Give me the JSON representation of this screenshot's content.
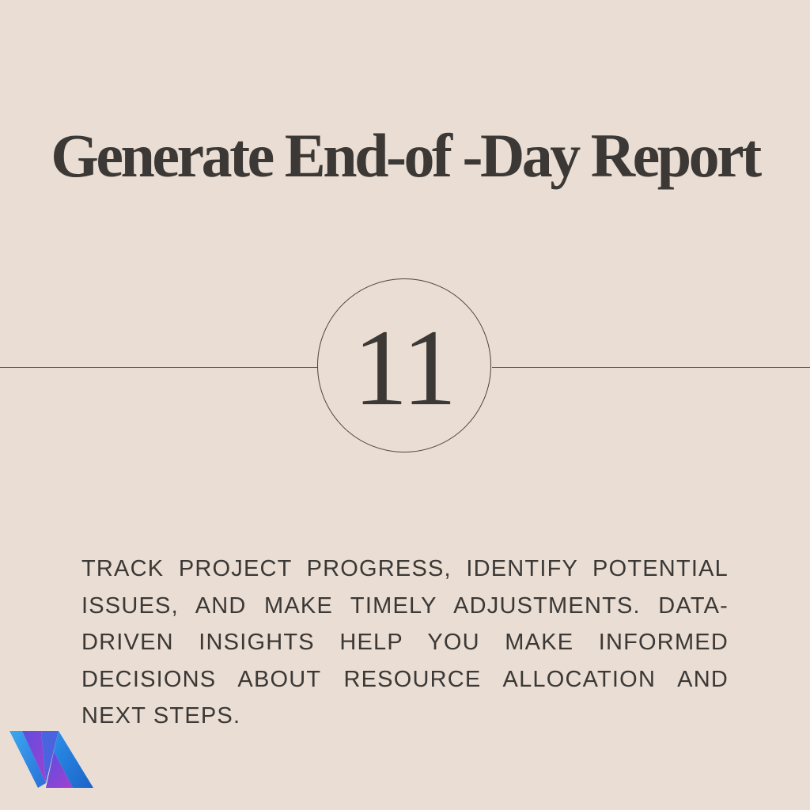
{
  "title": "Generate End-of -Day Report",
  "step_number": "11",
  "description": " TRACK PROJECT PROGRESS, IDENTIFY POTENTIAL ISSUES, AND MAKE TIMELY ADJUSTMENTS. DATA-DRIVEN INSIGHTS HELP YOU MAKE INFORMED DECISIONS ABOUT RESOURCE ALLOCATION AND NEXT STEPS.",
  "colors": {
    "background": "#e9ddd4",
    "text": "#3b3835",
    "logo_blue": "#2f8fe0",
    "logo_purple": "#8a3fd6"
  },
  "logo": {
    "icon": "va-logo-icon"
  }
}
